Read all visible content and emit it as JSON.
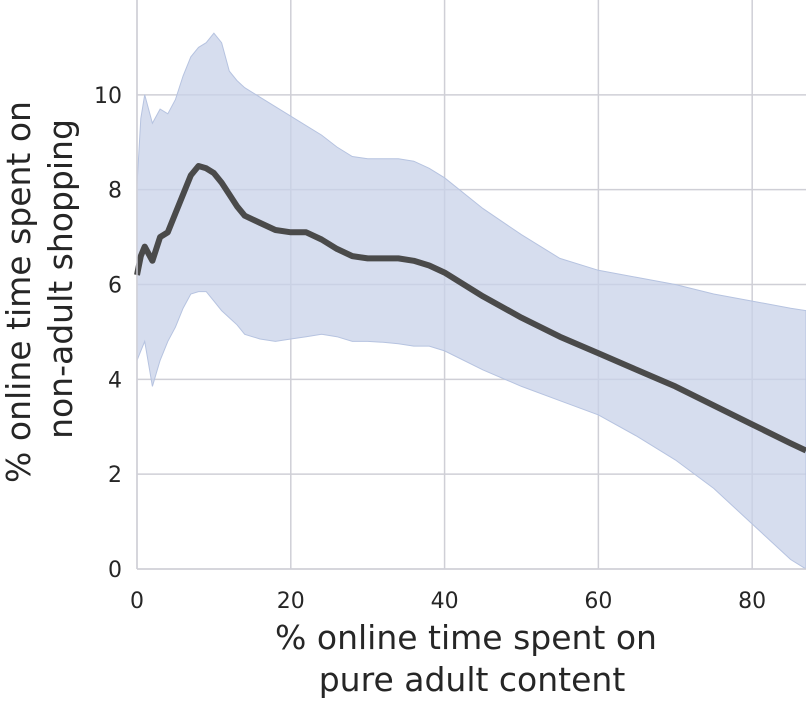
{
  "chart_data": {
    "type": "line",
    "title": "",
    "xlabel_lines": [
      "% online time spent on",
      "pure adult content"
    ],
    "ylabel_lines": [
      "% online time spent on",
      "non-adult shopping"
    ],
    "xlim": [
      0,
      87
    ],
    "ylim": [
      0,
      12
    ],
    "x_ticks": [
      0,
      20,
      40,
      60,
      80
    ],
    "y_ticks": [
      0,
      2,
      4,
      6,
      8,
      10
    ],
    "grid": true,
    "colors": {
      "line": "#4a4a4a",
      "band": "#c8d2e8",
      "band_edge": "#b6c3e0",
      "grid": "#cfcfd6",
      "axis": "#d0d0d8"
    },
    "series": [
      {
        "x": [
          0,
          0.5,
          1,
          2,
          3,
          4,
          5,
          6,
          7,
          8,
          9,
          10,
          11,
          12,
          13,
          14,
          16,
          18,
          20,
          22,
          24,
          26,
          28,
          30,
          32,
          34,
          36,
          38,
          40,
          45,
          50,
          55,
          60,
          65,
          70,
          75,
          80,
          85,
          87
        ],
        "y": [
          6.2,
          6.6,
          6.8,
          6.5,
          7.0,
          7.1,
          7.5,
          7.9,
          8.3,
          8.5,
          8.45,
          8.35,
          8.15,
          7.9,
          7.65,
          7.45,
          7.3,
          7.15,
          7.1,
          7.1,
          6.95,
          6.75,
          6.6,
          6.55,
          6.55,
          6.55,
          6.5,
          6.4,
          6.25,
          5.75,
          5.3,
          4.9,
          4.55,
          4.2,
          3.85,
          3.45,
          3.05,
          2.65,
          2.5
        ]
      }
    ],
    "band": {
      "x": [
        0,
        0.5,
        1,
        2,
        3,
        4,
        5,
        6,
        7,
        8,
        9,
        10,
        11,
        12,
        13,
        14,
        16,
        18,
        20,
        22,
        24,
        26,
        28,
        30,
        32,
        34,
        36,
        38,
        40,
        45,
        50,
        55,
        60,
        65,
        70,
        75,
        80,
        85,
        87
      ],
      "upper": [
        8.1,
        9.5,
        10.0,
        9.4,
        9.7,
        9.6,
        9.9,
        10.4,
        10.8,
        11.0,
        11.1,
        11.3,
        11.1,
        10.5,
        10.3,
        10.15,
        9.95,
        9.75,
        9.55,
        9.35,
        9.15,
        8.9,
        8.7,
        8.65,
        8.65,
        8.65,
        8.6,
        8.45,
        8.25,
        7.6,
        7.05,
        6.55,
        6.3,
        6.15,
        6.0,
        5.8,
        5.65,
        5.5,
        5.45
      ],
      "lower": [
        4.4,
        4.6,
        4.8,
        3.85,
        4.4,
        4.8,
        5.1,
        5.5,
        5.8,
        5.85,
        5.85,
        5.65,
        5.45,
        5.3,
        5.15,
        4.95,
        4.85,
        4.8,
        4.85,
        4.9,
        4.95,
        4.9,
        4.8,
        4.8,
        4.78,
        4.75,
        4.7,
        4.7,
        4.6,
        4.2,
        3.85,
        3.55,
        3.25,
        2.8,
        2.3,
        1.7,
        0.95,
        0.2,
        0.0
      ]
    }
  }
}
